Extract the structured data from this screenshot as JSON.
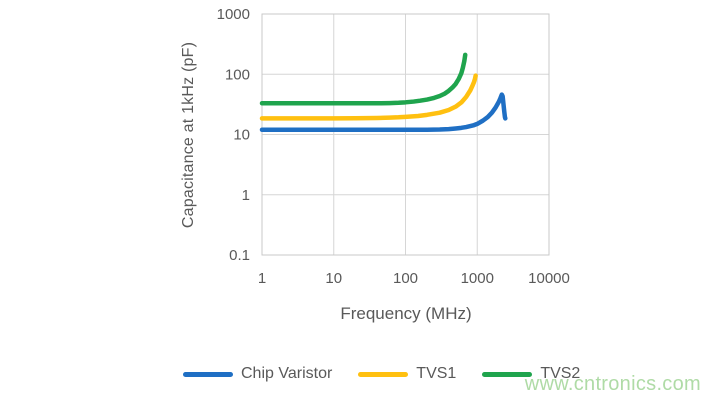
{
  "watermark": {
    "text": "www.cntronics.com",
    "color": "#AFDBA6"
  },
  "styles": {
    "grid_color": "#D6D6D6",
    "plot_border_color": "#C9C9C9",
    "axis_text_color": "#595959",
    "background": "#FFFFFF"
  },
  "chart_data": {
    "type": "line",
    "title": "",
    "xlabel": "Frequency (MHz)",
    "ylabel": "Capacitance at 1kHz (pF)",
    "x_scale": "log",
    "y_scale": "log",
    "xlim": [
      1,
      10000
    ],
    "ylim": [
      0.1,
      1000
    ],
    "x_ticks": [
      "1",
      "10",
      "100",
      "1000",
      "10000"
    ],
    "y_ticks": [
      "0.1",
      "1",
      "10",
      "100",
      "1000"
    ],
    "grid": true,
    "legend_position": "bottom",
    "series": [
      {
        "name": "Chip Varistor",
        "color": "#1F6FC4",
        "points": [
          [
            1,
            12
          ],
          [
            2,
            12
          ],
          [
            5,
            12
          ],
          [
            10,
            12
          ],
          [
            20,
            12
          ],
          [
            50,
            12
          ],
          [
            100,
            12
          ],
          [
            200,
            12
          ],
          [
            300,
            12.1
          ],
          [
            400,
            12.3
          ],
          [
            500,
            12.6
          ],
          [
            600,
            12.9
          ],
          [
            700,
            13.3
          ],
          [
            800,
            13.8
          ],
          [
            900,
            14.3
          ],
          [
            1000,
            15
          ],
          [
            1200,
            17
          ],
          [
            1400,
            19.5
          ],
          [
            1600,
            23
          ],
          [
            1800,
            28
          ],
          [
            2000,
            35
          ],
          [
            2100,
            40
          ],
          [
            2200,
            46
          ],
          [
            2260,
            43
          ],
          [
            2320,
            32
          ],
          [
            2380,
            24
          ],
          [
            2430,
            19.5
          ],
          [
            2460,
            18.5
          ]
        ]
      },
      {
        "name": "TVS1",
        "color": "#FFC010",
        "points": [
          [
            1,
            18.5
          ],
          [
            2,
            18.5
          ],
          [
            5,
            18.5
          ],
          [
            10,
            18.5
          ],
          [
            20,
            18.6
          ],
          [
            40,
            18.8
          ],
          [
            60,
            19.1
          ],
          [
            80,
            19.3
          ],
          [
            100,
            19.6
          ],
          [
            150,
            20.3
          ],
          [
            200,
            21.2
          ],
          [
            300,
            23
          ],
          [
            400,
            25.5
          ],
          [
            500,
            29
          ],
          [
            600,
            34
          ],
          [
            700,
            42
          ],
          [
            800,
            54
          ],
          [
            850,
            63
          ],
          [
            900,
            74
          ],
          [
            930,
            84
          ],
          [
            950,
            95
          ]
        ]
      },
      {
        "name": "TVS2",
        "color": "#1FA44D",
        "points": [
          [
            1,
            33
          ],
          [
            2,
            33
          ],
          [
            5,
            33
          ],
          [
            10,
            33
          ],
          [
            20,
            33
          ],
          [
            40,
            33
          ],
          [
            60,
            33.2
          ],
          [
            80,
            33.6
          ],
          [
            100,
            34.2
          ],
          [
            130,
            35.2
          ],
          [
            160,
            36.4
          ],
          [
            200,
            38
          ],
          [
            250,
            40.5
          ],
          [
            300,
            43.5
          ],
          [
            350,
            47.5
          ],
          [
            400,
            53
          ],
          [
            450,
            60
          ],
          [
            500,
            69
          ],
          [
            550,
            83
          ],
          [
            600,
            104
          ],
          [
            630,
            128
          ],
          [
            660,
            165
          ],
          [
            680,
            210
          ]
        ]
      }
    ]
  }
}
